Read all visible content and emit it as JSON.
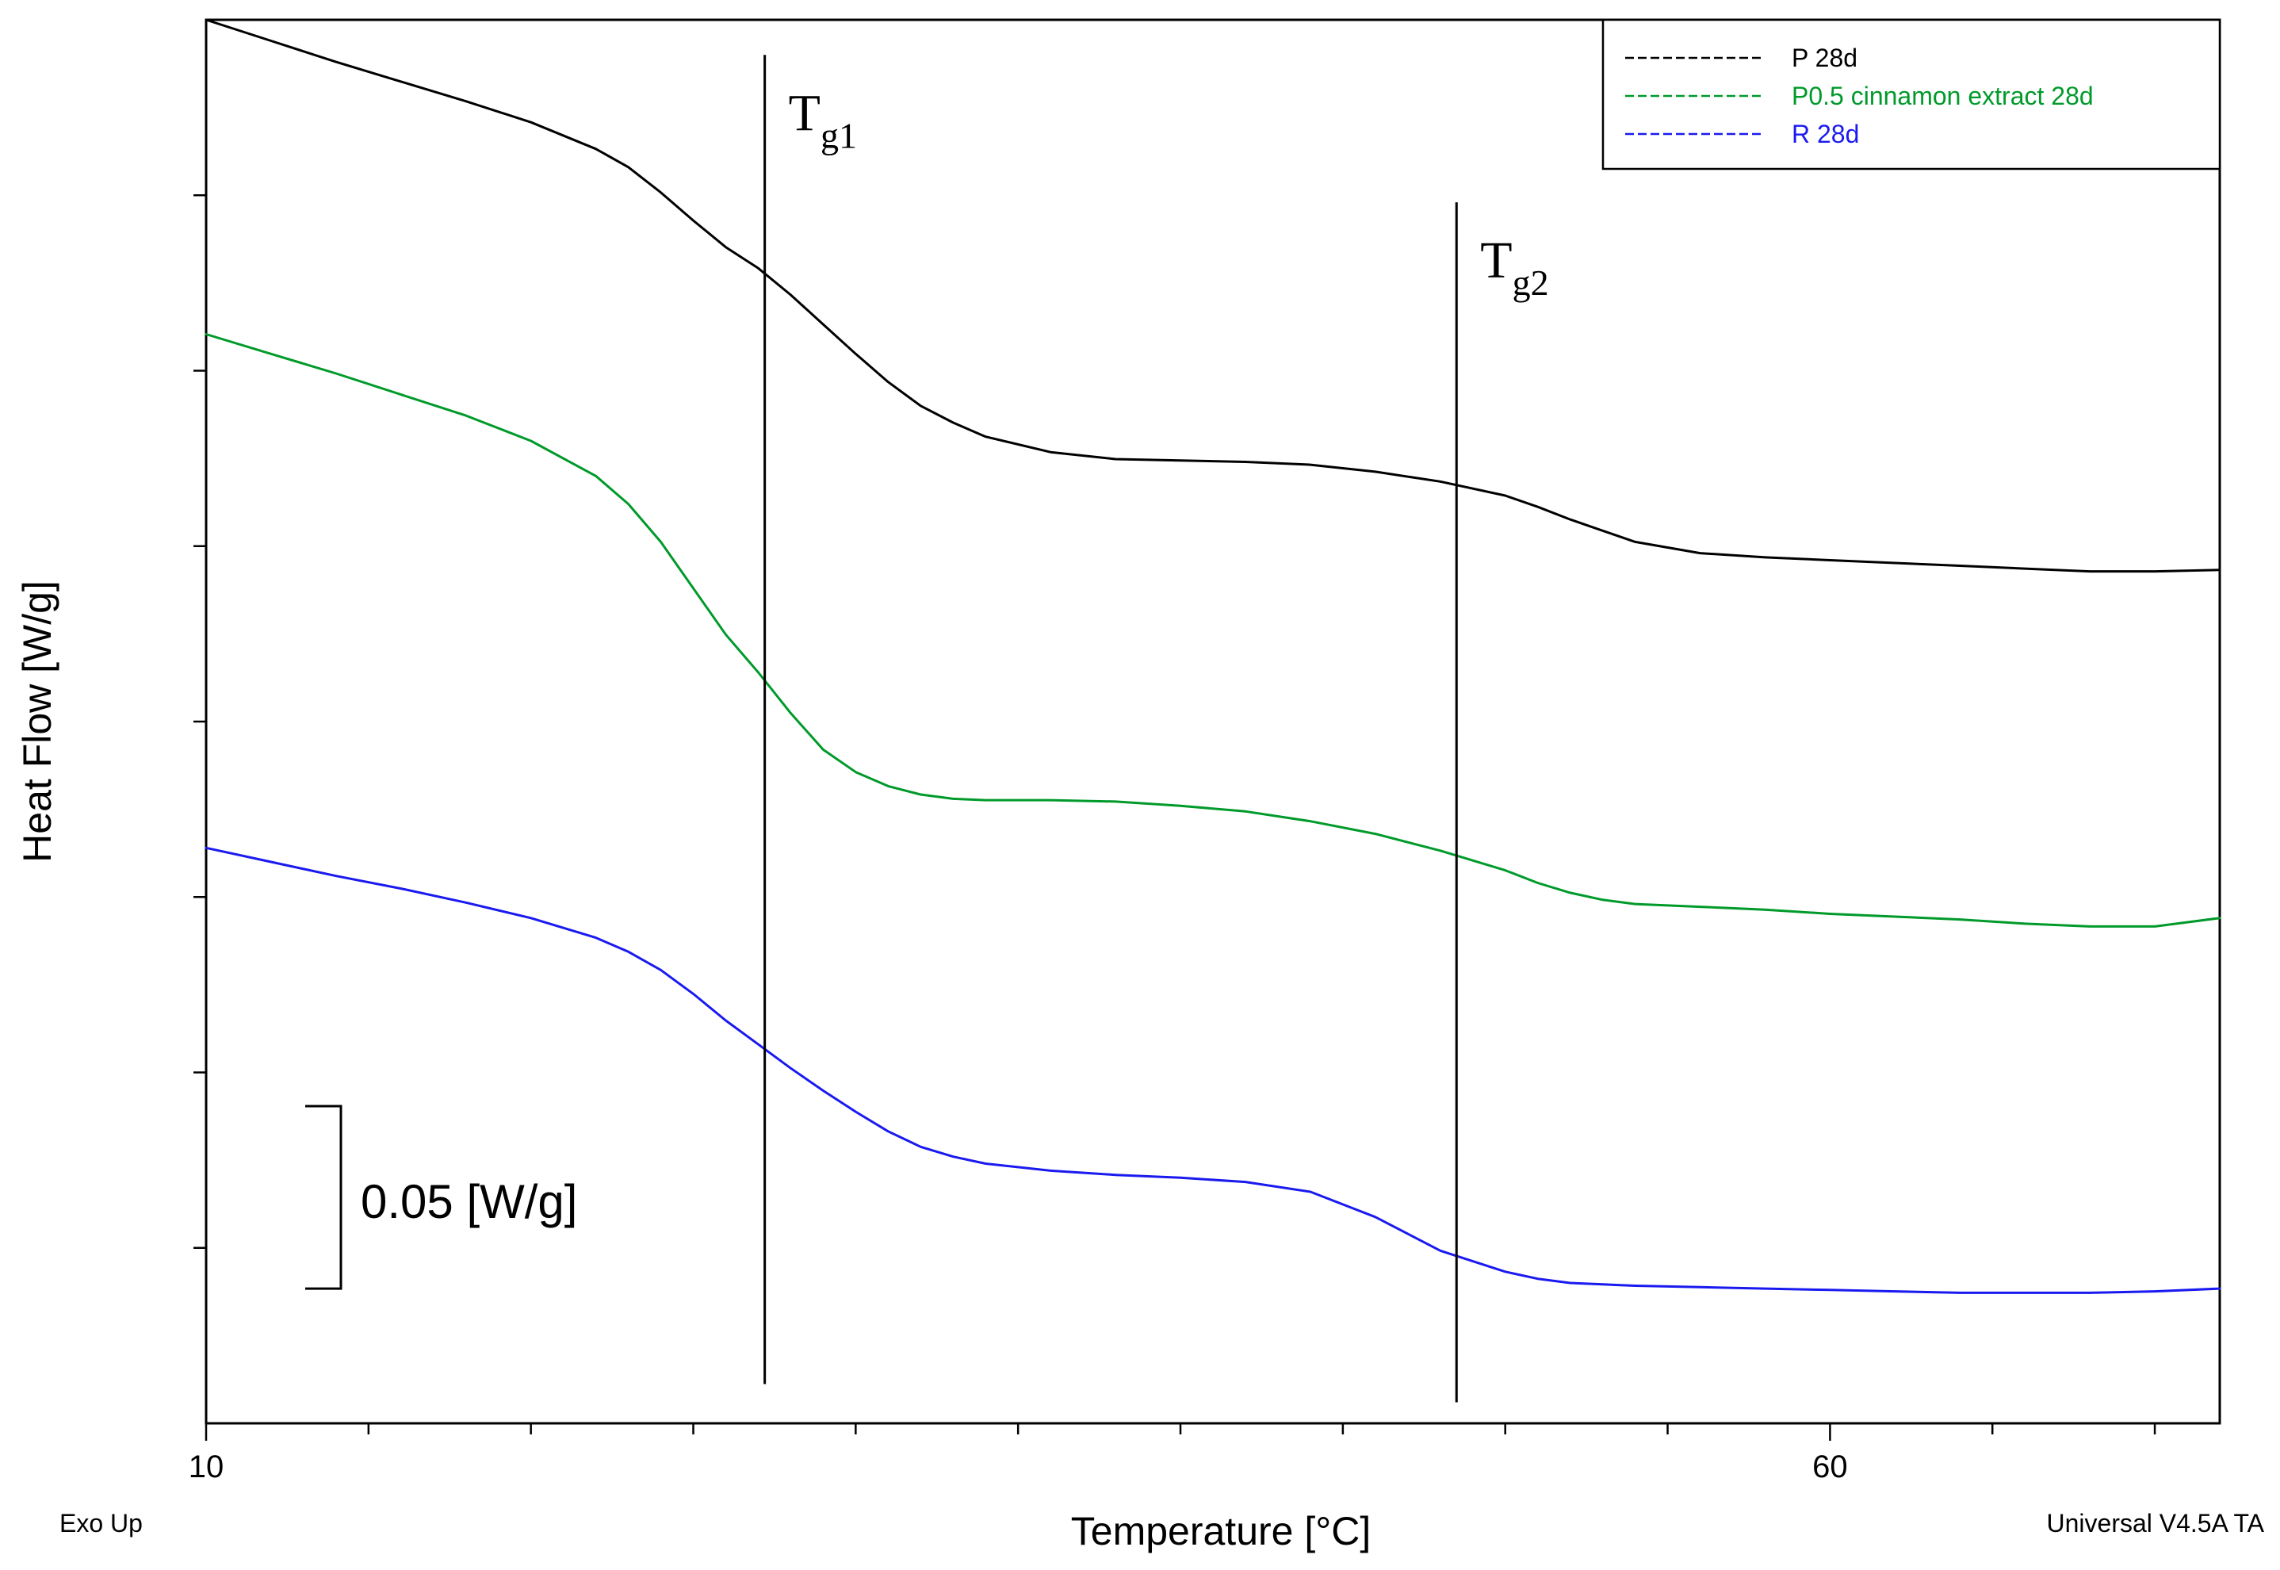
{
  "chart_data": {
    "type": "line",
    "title": "",
    "xlabel": "Temperature [°C]",
    "ylabel": "Heat Flow [W/g]",
    "xlim": [
      10,
      72
    ],
    "ylim": [
      0,
      1
    ],
    "x_ticks": [
      10,
      60
    ],
    "y_minor_tick_count": 8,
    "grid": false,
    "corner_left": "Exo Up",
    "corner_right": "Universal V4.5A TA",
    "legend_position": "top-right",
    "scale_bar": {
      "label": "0.05 [W/g]",
      "value_units": 0.13
    },
    "annotations": [
      {
        "name": "tg1-line",
        "main": "T",
        "sub": "g1",
        "x": 27.2,
        "y_top": 0.975,
        "y_bottom": 0.028
      },
      {
        "name": "tg2-line",
        "main": "T",
        "sub": "g2",
        "x": 48.5,
        "y_top": 0.87,
        "y_bottom": 0.015
      }
    ],
    "series": [
      {
        "name": "P 28d",
        "color": "#000000",
        "x": [
          10,
          12,
          14,
          16,
          18,
          20,
          22,
          23,
          24,
          25,
          26,
          27,
          28,
          29,
          30,
          31,
          32,
          33,
          34,
          36,
          38,
          40,
          42,
          44,
          46,
          48,
          50,
          51,
          52,
          53,
          54,
          56,
          58,
          60,
          62,
          64,
          66,
          68,
          70,
          72
        ],
        "y": [
          1.0,
          0.985,
          0.97,
          0.956,
          0.942,
          0.927,
          0.908,
          0.895,
          0.877,
          0.857,
          0.838,
          0.823,
          0.804,
          0.783,
          0.762,
          0.742,
          0.725,
          0.713,
          0.703,
          0.692,
          0.687,
          0.686,
          0.685,
          0.683,
          0.678,
          0.671,
          0.661,
          0.653,
          0.644,
          0.636,
          0.628,
          0.62,
          0.617,
          0.615,
          0.613,
          0.611,
          0.609,
          0.607,
          0.607,
          0.608
        ]
      },
      {
        "name": "P0.5 cinnamon extract 28d",
        "color": "#009A2A",
        "x": [
          10,
          12,
          14,
          16,
          18,
          20,
          22,
          23,
          24,
          25,
          26,
          27,
          28,
          29,
          30,
          31,
          32,
          33,
          34,
          36,
          38,
          40,
          42,
          44,
          46,
          48,
          50,
          51,
          52,
          53,
          54,
          56,
          58,
          60,
          62,
          64,
          66,
          68,
          70,
          72
        ],
        "y": [
          0.776,
          0.762,
          0.748,
          0.733,
          0.718,
          0.7,
          0.675,
          0.655,
          0.628,
          0.595,
          0.562,
          0.535,
          0.506,
          0.48,
          0.464,
          0.454,
          0.448,
          0.445,
          0.444,
          0.444,
          0.443,
          0.44,
          0.436,
          0.429,
          0.42,
          0.408,
          0.394,
          0.385,
          0.378,
          0.373,
          0.37,
          0.368,
          0.366,
          0.363,
          0.361,
          0.359,
          0.356,
          0.354,
          0.354,
          0.36
        ]
      },
      {
        "name": "R 28d",
        "color": "#1A1AF0",
        "x": [
          10,
          12,
          14,
          16,
          18,
          20,
          22,
          23,
          24,
          25,
          26,
          27,
          28,
          29,
          30,
          31,
          32,
          33,
          34,
          36,
          38,
          40,
          42,
          44,
          46,
          48,
          50,
          51,
          52,
          53,
          54,
          56,
          58,
          60,
          62,
          64,
          66,
          68,
          70,
          72
        ],
        "y": [
          0.41,
          0.4,
          0.39,
          0.381,
          0.371,
          0.36,
          0.346,
          0.336,
          0.323,
          0.306,
          0.287,
          0.27,
          0.253,
          0.237,
          0.222,
          0.208,
          0.197,
          0.19,
          0.185,
          0.18,
          0.177,
          0.175,
          0.172,
          0.165,
          0.147,
          0.123,
          0.108,
          0.103,
          0.1,
          0.099,
          0.098,
          0.097,
          0.096,
          0.095,
          0.094,
          0.093,
          0.093,
          0.093,
          0.094,
          0.096
        ]
      }
    ]
  }
}
